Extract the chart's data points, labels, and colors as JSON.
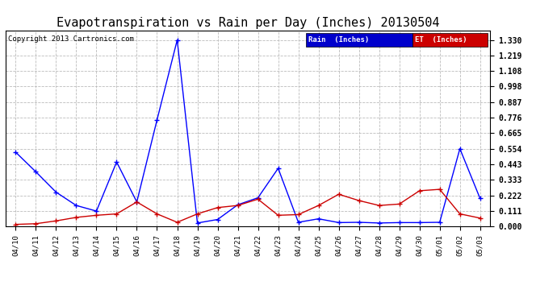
{
  "title": "Evapotranspiration vs Rain per Day (Inches) 20130504",
  "copyright": "Copyright 2013 Cartronics.com",
  "x_labels": [
    "04/10",
    "04/11",
    "04/12",
    "04/13",
    "04/14",
    "04/15",
    "04/16",
    "04/17",
    "04/18",
    "04/19",
    "04/20",
    "04/21",
    "04/22",
    "04/23",
    "04/24",
    "04/25",
    "04/26",
    "04/27",
    "04/28",
    "04/29",
    "04/30",
    "05/01",
    "05/02",
    "05/03"
  ],
  "rain_values": [
    0.53,
    0.39,
    0.245,
    0.15,
    0.11,
    0.46,
    0.175,
    0.76,
    1.33,
    0.025,
    0.05,
    0.155,
    0.205,
    0.415,
    0.03,
    0.055,
    0.028,
    0.03,
    0.025,
    0.028,
    0.028,
    0.03,
    0.555,
    0.2
  ],
  "et_values": [
    0.015,
    0.02,
    0.04,
    0.065,
    0.08,
    0.09,
    0.175,
    0.09,
    0.03,
    0.09,
    0.135,
    0.15,
    0.195,
    0.08,
    0.085,
    0.15,
    0.23,
    0.185,
    0.15,
    0.16,
    0.255,
    0.265,
    0.09,
    0.06
  ],
  "rain_color": "#0000ff",
  "et_color": "#cc0000",
  "background_color": "#ffffff",
  "grid_color": "#bbbbbb",
  "title_fontsize": 11,
  "ytick_values": [
    0.0,
    0.111,
    0.222,
    0.333,
    0.443,
    0.554,
    0.665,
    0.776,
    0.887,
    0.998,
    1.108,
    1.219,
    1.33
  ],
  "ylim": [
    0.0,
    1.4
  ],
  "legend_rain_label": "Rain  (Inches)",
  "legend_et_label": "ET  (Inches)"
}
